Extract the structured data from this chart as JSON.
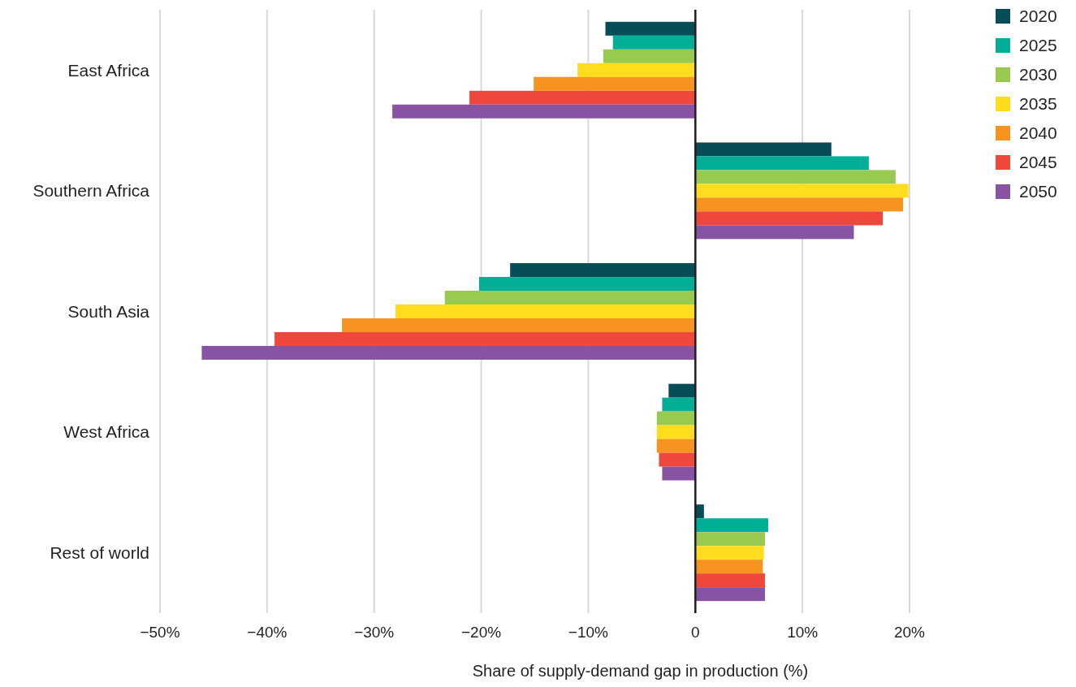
{
  "chart_data": {
    "type": "bar",
    "orientation": "horizontal",
    "xlabel": "Share of supply-demand gap in production (%)",
    "categories": [
      "East Africa",
      "Southern Africa",
      "South Asia",
      "West Africa",
      "Rest of world"
    ],
    "series": [
      {
        "name": "2020",
        "color": "#074d57",
        "values": [
          -8.4,
          12.7,
          -17.3,
          -2.5,
          0.8
        ]
      },
      {
        "name": "2025",
        "color": "#03ae99",
        "values": [
          -7.7,
          16.2,
          -20.2,
          -3.1,
          6.8
        ]
      },
      {
        "name": "2030",
        "color": "#98ca4f",
        "values": [
          -8.6,
          18.7,
          -23.4,
          -3.6,
          6.5
        ]
      },
      {
        "name": "2035",
        "color": "#fedc1e",
        "values": [
          -11.0,
          19.9,
          -28.0,
          -3.6,
          6.4
        ]
      },
      {
        "name": "2040",
        "color": "#f7941f",
        "values": [
          -15.1,
          19.4,
          -33.0,
          -3.6,
          6.3
        ]
      },
      {
        "name": "2045",
        "color": "#ef473b",
        "values": [
          -21.1,
          17.5,
          -39.3,
          -3.4,
          6.5
        ]
      },
      {
        "name": "2050",
        "color": "#8753a2",
        "values": [
          -28.3,
          14.8,
          -46.1,
          -3.1,
          6.5
        ]
      }
    ],
    "xlim": [
      -50,
      20
    ],
    "xticks": [
      {
        "value": -50,
        "label": "−50%"
      },
      {
        "value": -40,
        "label": "−40%"
      },
      {
        "value": -30,
        "label": "−30%"
      },
      {
        "value": -20,
        "label": "−20%"
      },
      {
        "value": -10,
        "label": "−10%"
      },
      0,
      {
        "value": 10,
        "label": "10%"
      },
      {
        "value": 20,
        "label": "20%"
      }
    ],
    "grid": "x",
    "legend": "top right"
  }
}
